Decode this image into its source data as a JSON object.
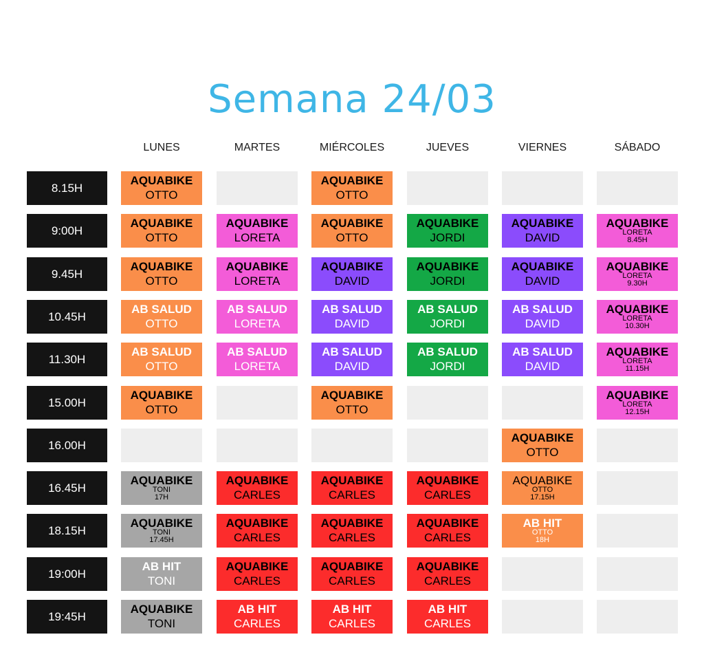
{
  "title": "Semana 24/03",
  "days": [
    "LUNES",
    "MARTES",
    "MIÉRCOLES",
    "JUEVES",
    "VIERNES",
    "SÁBADO"
  ],
  "rows": [
    {
      "time": "8.15H",
      "cells": [
        {
          "class": "AQUABIKE",
          "instructor": "OTTO",
          "color": "orange",
          "cls_color": "#000000",
          "inst_color": "#000000"
        },
        null,
        {
          "class": "AQUABIKE",
          "instructor": "OTTO",
          "color": "orange",
          "cls_color": "#000000",
          "inst_color": "#000000"
        },
        null,
        null,
        null
      ]
    },
    {
      "time": "9:00H",
      "cells": [
        {
          "class": "AQUABIKE",
          "instructor": "OTTO",
          "color": "orange",
          "cls_color": "#000000",
          "inst_color": "#000000"
        },
        {
          "class": "AQUABIKE",
          "instructor": "LORETA",
          "color": "pink",
          "cls_color": "#000000",
          "inst_color": "#000000"
        },
        {
          "class": "AQUABIKE",
          "instructor": "OTTO",
          "color": "orange",
          "cls_color": "#000000",
          "inst_color": "#000000"
        },
        {
          "class": "AQUABIKE",
          "instructor": "JORDI",
          "color": "green",
          "cls_color": "#000000",
          "inst_color": "#000000"
        },
        {
          "class": "AQUABIKE",
          "instructor": "DAVID",
          "color": "purple",
          "cls_color": "#000000",
          "inst_color": "#000000"
        },
        {
          "class": "AQUABIKE",
          "instructor": "LORETA",
          "note": "8.45H",
          "color": "pink",
          "cls_color": "#000000",
          "inst_color": "#000000"
        }
      ]
    },
    {
      "time": "9.45H",
      "cells": [
        {
          "class": "AQUABIKE",
          "instructor": "OTTO",
          "color": "orange",
          "cls_color": "#000000",
          "inst_color": "#000000"
        },
        {
          "class": "AQUABIKE",
          "instructor": "LORETA",
          "color": "pink",
          "cls_color": "#000000",
          "inst_color": "#000000"
        },
        {
          "class": "AQUABIKE",
          "instructor": "DAVID",
          "color": "purple",
          "cls_color": "#000000",
          "inst_color": "#000000"
        },
        {
          "class": "AQUABIKE",
          "instructor": "JORDI",
          "color": "green",
          "cls_color": "#000000",
          "inst_color": "#000000"
        },
        {
          "class": "AQUABIKE",
          "instructor": "DAVID",
          "color": "purple",
          "cls_color": "#000000",
          "inst_color": "#000000"
        },
        {
          "class": "AQUABIKE",
          "instructor": "LORETA",
          "note": "9.30H",
          "color": "pink",
          "cls_color": "#000000",
          "inst_color": "#000000"
        }
      ]
    },
    {
      "time": "10.45H",
      "cells": [
        {
          "class": "AB SALUD",
          "instructor": "OTTO",
          "color": "orange",
          "cls_color": "#ffffff",
          "inst_color": "#ffffff"
        },
        {
          "class": "AB SALUD",
          "instructor": "LORETA",
          "color": "pink",
          "cls_color": "#ffffff",
          "inst_color": "#ffffff"
        },
        {
          "class": "AB SALUD",
          "instructor": "DAVID",
          "color": "purple",
          "cls_color": "#ffffff",
          "inst_color": "#ffffff"
        },
        {
          "class": "AB SALUD",
          "instructor": "JORDI",
          "color": "green",
          "cls_color": "#ffffff",
          "inst_color": "#ffffff"
        },
        {
          "class": "AB SALUD",
          "instructor": "DAVID",
          "color": "purple",
          "cls_color": "#ffffff",
          "inst_color": "#ffffff"
        },
        {
          "class": "AQUABIKE",
          "instructor": "LORETA",
          "note": "10.30H",
          "color": "pink",
          "cls_color": "#000000",
          "inst_color": "#000000"
        }
      ]
    },
    {
      "time": "11.30H",
      "cells": [
        {
          "class": "AB SALUD",
          "instructor": "OTTO",
          "color": "orange",
          "cls_color": "#ffffff",
          "inst_color": "#ffffff"
        },
        {
          "class": "AB SALUD",
          "instructor": "LORETA",
          "color": "pink",
          "cls_color": "#ffffff",
          "inst_color": "#ffffff"
        },
        {
          "class": "AB SALUD",
          "instructor": "DAVID",
          "color": "purple",
          "cls_color": "#ffffff",
          "inst_color": "#ffffff"
        },
        {
          "class": "AB SALUD",
          "instructor": "JORDI",
          "color": "green",
          "cls_color": "#ffffff",
          "inst_color": "#ffffff"
        },
        {
          "class": "AB SALUD",
          "instructor": "DAVID",
          "color": "purple",
          "cls_color": "#ffffff",
          "inst_color": "#ffffff"
        },
        {
          "class": "AQUABIKE",
          "instructor": "LORETA",
          "note": "11.15H",
          "color": "pink",
          "cls_color": "#000000",
          "inst_color": "#000000"
        }
      ]
    },
    {
      "time": "15.00H",
      "cells": [
        {
          "class": "AQUABIKE",
          "instructor": "OTTO",
          "color": "orange",
          "cls_color": "#000000",
          "inst_color": "#000000"
        },
        null,
        {
          "class": "AQUABIKE",
          "instructor": "OTTO",
          "color": "orange",
          "cls_color": "#000000",
          "inst_color": "#000000"
        },
        null,
        null,
        {
          "class": "AQUABIKE",
          "instructor": "LORETA",
          "note": "12.15H",
          "color": "pink",
          "cls_color": "#000000",
          "inst_color": "#000000"
        }
      ]
    },
    {
      "time": "16.00H",
      "cells": [
        null,
        null,
        null,
        null,
        {
          "class": "AQUABIKE",
          "instructor": "OTTO",
          "color": "orange",
          "cls_color": "#000000",
          "inst_color": "#000000"
        },
        null
      ]
    },
    {
      "time": "16.45H",
      "cells": [
        {
          "class": "AQUABIKE",
          "instructor": "TONI",
          "note": "17H",
          "color": "gray",
          "cls_color": "#000000",
          "inst_color": "#000000"
        },
        {
          "class": "AQUABIKE",
          "instructor": "CARLES",
          "color": "red",
          "cls_color": "#000000",
          "inst_color": "#000000"
        },
        {
          "class": "AQUABIKE",
          "instructor": "CARLES",
          "color": "red",
          "cls_color": "#000000",
          "inst_color": "#000000"
        },
        {
          "class": "AQUABIKE",
          "instructor": "CARLES",
          "color": "red",
          "cls_color": "#000000",
          "inst_color": "#000000"
        },
        {
          "class": "AQUABIKE",
          "instructor": "OTTO",
          "note": "17.15H",
          "color": "orange",
          "cls_color": "#000000",
          "inst_color": "#000000",
          "cls_weight": "normal"
        },
        null
      ]
    },
    {
      "time": "18.15H",
      "cells": [
        {
          "class": "AQUABIKE",
          "instructor": "TONI",
          "note": "17.45H",
          "color": "gray",
          "cls_color": "#000000",
          "inst_color": "#000000"
        },
        {
          "class": "AQUABIKE",
          "instructor": "CARLES",
          "color": "red",
          "cls_color": "#000000",
          "inst_color": "#000000"
        },
        {
          "class": "AQUABIKE",
          "instructor": "CARLES",
          "color": "red",
          "cls_color": "#000000",
          "inst_color": "#000000"
        },
        {
          "class": "AQUABIKE",
          "instructor": "CARLES",
          "color": "red",
          "cls_color": "#000000",
          "inst_color": "#000000"
        },
        {
          "class": "AB HIT",
          "instructor": "OTTO",
          "note": "18H",
          "color": "orange",
          "cls_color": "#ffffff",
          "inst_color": "#ffffff"
        },
        null
      ]
    },
    {
      "time": "19:00H",
      "cells": [
        {
          "class": "AB HIT",
          "instructor": "TONI",
          "color": "gray",
          "cls_color": "#ffffff",
          "inst_color": "#ffffff"
        },
        {
          "class": "AQUABIKE",
          "instructor": "CARLES",
          "color": "red",
          "cls_color": "#000000",
          "inst_color": "#000000"
        },
        {
          "class": "AQUABIKE",
          "instructor": "CARLES",
          "color": "red",
          "cls_color": "#000000",
          "inst_color": "#000000"
        },
        {
          "class": "AQUABIKE",
          "instructor": "CARLES",
          "color": "red",
          "cls_color": "#000000",
          "inst_color": "#000000"
        },
        null,
        null
      ]
    },
    {
      "time": "19:45H",
      "cells": [
        {
          "class": "AQUABIKE",
          "instructor": "TONI",
          "color": "gray",
          "cls_color": "#000000",
          "inst_color": "#000000"
        },
        {
          "class": "AB HIT",
          "instructor": "CARLES",
          "color": "red",
          "cls_color": "#ffffff",
          "inst_color": "#ffffff"
        },
        {
          "class": "AB HIT",
          "instructor": "CARLES",
          "color": "red",
          "cls_color": "#ffffff",
          "inst_color": "#ffffff"
        },
        {
          "class": "AB HIT",
          "instructor": "CARLES",
          "color": "red",
          "cls_color": "#ffffff",
          "inst_color": "#ffffff"
        },
        null,
        null
      ]
    }
  ]
}
